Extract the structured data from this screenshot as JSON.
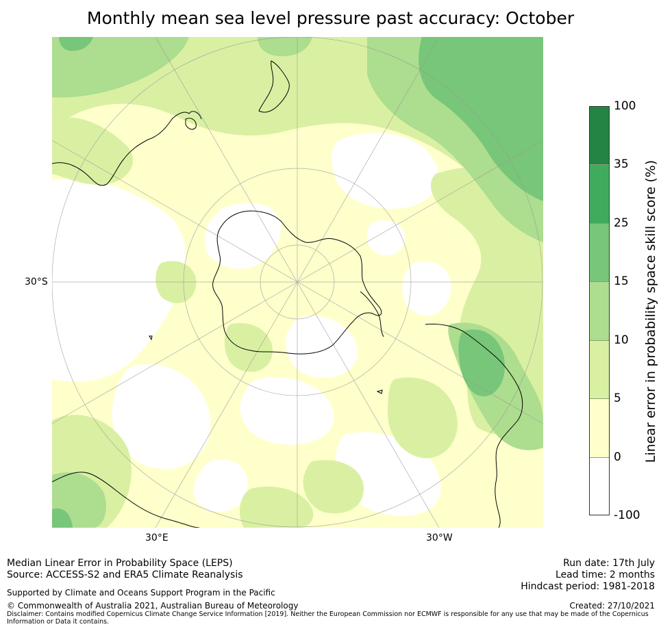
{
  "title": "Monthly mean sea level pressure past accuracy: October",
  "map": {
    "projection": "south polar stereographic",
    "lat_labels": {
      "left": "30°S",
      "bottom_left": "30°E",
      "bottom_right": "30°W"
    },
    "colors": {
      "ocean_low": "#ffffcc",
      "none": "#ffffff",
      "coast": "#000000",
      "grid": "#999999"
    }
  },
  "colorbar": {
    "label": "Linear error in probability space skill score (%)",
    "ticks": [
      "100",
      "35",
      "25",
      "15",
      "10",
      "5",
      "0",
      "-100"
    ],
    "bins": [
      {
        "range": "35-100",
        "color": "#238443"
      },
      {
        "range": "25-35",
        "color": "#41ab5d"
      },
      {
        "range": "15-25",
        "color": "#78c679"
      },
      {
        "range": "10-15",
        "color": "#addd8e"
      },
      {
        "range": "5-10",
        "color": "#d9f0a3"
      },
      {
        "range": "0-5",
        "color": "#ffffcc"
      },
      {
        "range": "-100-0",
        "color": "#ffffff"
      }
    ]
  },
  "footer": {
    "line1": "Median Linear Error in Probability Space (LEPS)",
    "line2": "Source: ACCESS-S2 and ERA5 Climate Reanalysis",
    "supported": "Supported by Climate and Oceans Support Program in the Pacific",
    "copyright": "© Commonwealth of Australia 2021, Australian Bureau of Meteorology",
    "disclaimer": "Disclaimer: Contains modified Copernicus Climate Change Service Information [2019]. Neither the European Commission nor ECMWF is responsible for any use that may be made of the Copernicus Information or Data it contains.",
    "run_date": "Run date: 17th July",
    "lead_time": "Lead time: 2 months",
    "hindcast": "Hindcast period: 1981-2018",
    "created": "Created: 27/10/2021"
  }
}
